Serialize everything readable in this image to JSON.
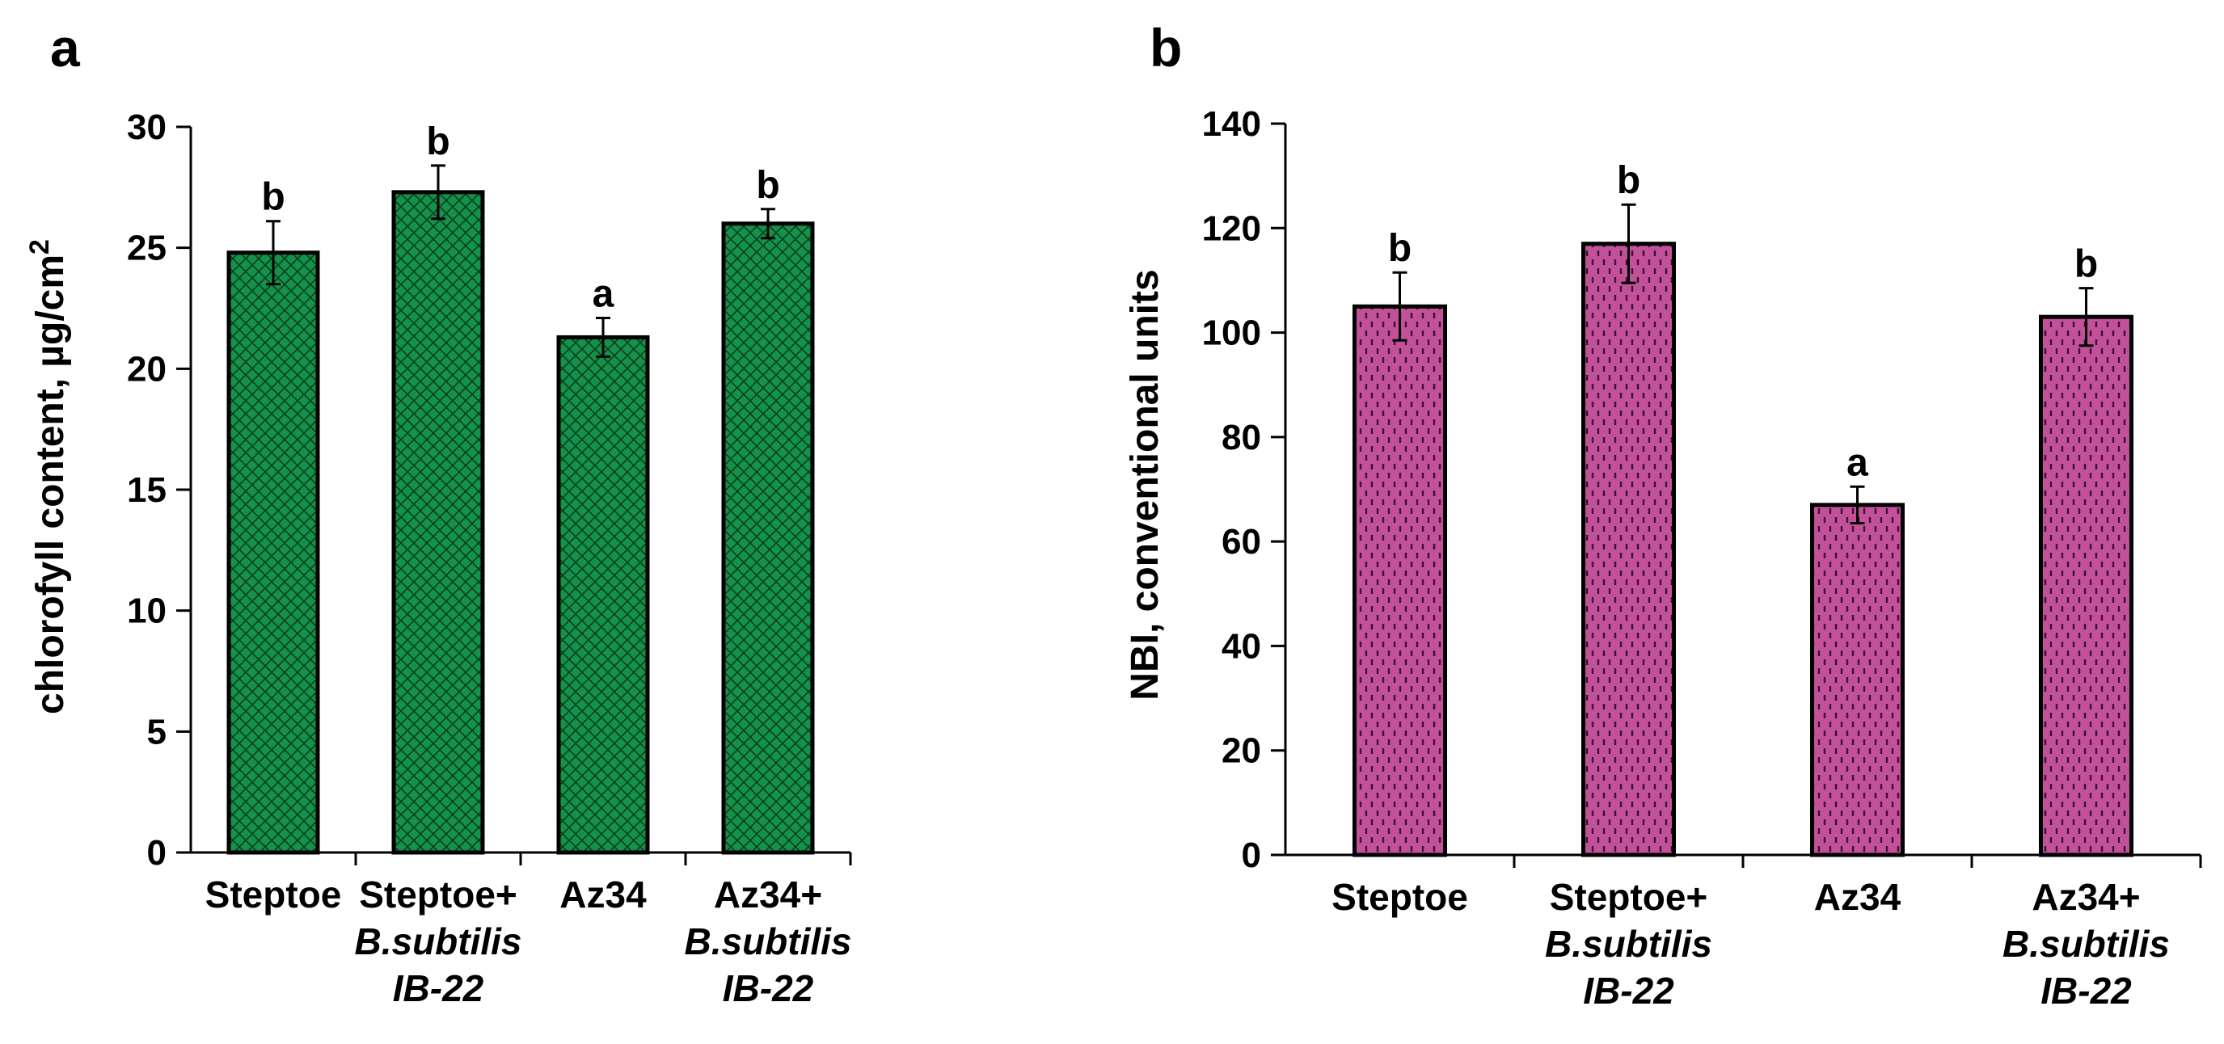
{
  "chart_data": [
    {
      "type": "bar",
      "panel": "a",
      "ylabel": "chlorofyll content, µg/cm",
      "ylabel_sup": "2",
      "ylim": [
        0,
        30
      ],
      "yticks": [
        0,
        5,
        10,
        15,
        20,
        25,
        30
      ],
      "categories": [
        {
          "line1": "Steptoe",
          "line2": "",
          "line3": ""
        },
        {
          "line1": "Steptoe+",
          "line2": "B.subtilis",
          "line3": "IB-22"
        },
        {
          "line1": "Az34",
          "line2": "",
          "line3": ""
        },
        {
          "line1": "Az34+",
          "line2": "B.subtilis",
          "line3": "IB-22"
        }
      ],
      "values": [
        24.8,
        27.3,
        21.3,
        26.0
      ],
      "errors": [
        1.3,
        1.1,
        0.8,
        0.6
      ],
      "significance": [
        "b",
        "b",
        "a",
        "b"
      ],
      "fill_color": "#14924a",
      "pattern": "crosshatch"
    },
    {
      "type": "bar",
      "panel": "b",
      "ylabel": "NBI, conventional units",
      "ylabel_sup": "",
      "ylim": [
        0,
        140
      ],
      "yticks": [
        0,
        20,
        40,
        60,
        80,
        100,
        120,
        140
      ],
      "categories": [
        {
          "line1": "Steptoe",
          "line2": "",
          "line3": ""
        },
        {
          "line1": "Steptoe+",
          "line2": "B.subtilis",
          "line3": "IB-22"
        },
        {
          "line1": "Az34",
          "line2": "",
          "line3": ""
        },
        {
          "line1": "Az34+",
          "line2": "B.subtilis",
          "line3": "IB-22"
        }
      ],
      "values": [
        105,
        117,
        67,
        103
      ],
      "errors": [
        6.5,
        7.5,
        3.5,
        5.5
      ],
      "significance": [
        "b",
        "b",
        "a",
        "b"
      ],
      "fill_color": "#c2519a",
      "pattern": "dashes"
    }
  ]
}
